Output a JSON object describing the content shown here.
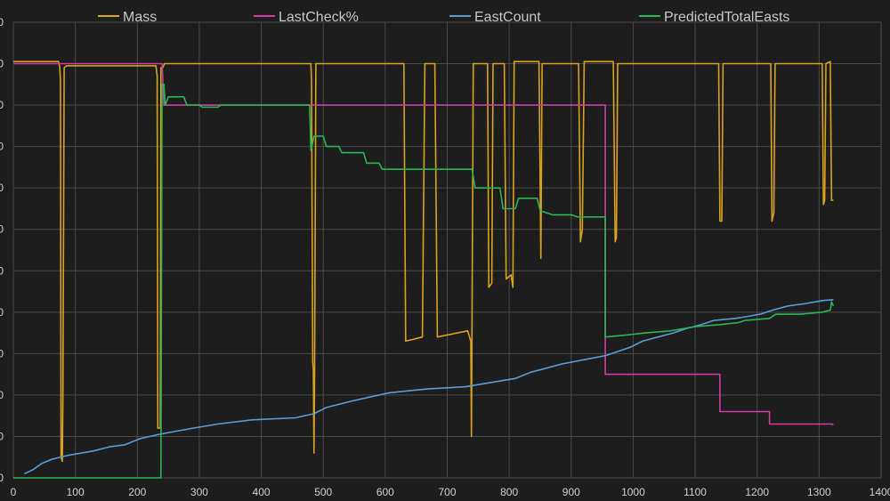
{
  "chart_data": {
    "type": "line",
    "title": "",
    "xlabel": "",
    "ylabel": "",
    "xlim": [
      0,
      1400
    ],
    "ylim": [
      0,
      11
    ],
    "x_ticks": [
      0,
      100,
      200,
      300,
      400,
      500,
      600,
      700,
      800,
      900,
      1000,
      1100,
      1200,
      1300,
      1400
    ],
    "y_tick_labels": [
      "0",
      "0",
      "0",
      "0",
      "0",
      "0",
      "0",
      "0",
      "0",
      "0",
      "0",
      "0"
    ],
    "grid": true,
    "legend_position": "top",
    "series": [
      {
        "name": "Mass",
        "color": "#d8a21e",
        "points": [
          [
            0,
            10.05
          ],
          [
            73,
            10.05
          ],
          [
            75,
            9.9
          ],
          [
            76,
            9.6
          ],
          [
            77,
            0.5
          ],
          [
            79,
            0.4
          ],
          [
            80,
            2.0
          ],
          [
            82,
            9.9
          ],
          [
            86,
            9.95
          ],
          [
            230,
            9.95
          ],
          [
            232,
            9.7
          ],
          [
            233,
            1.2
          ],
          [
            237,
            1.2
          ],
          [
            238,
            9.9
          ],
          [
            241,
            9.9
          ],
          [
            244,
            10.0
          ],
          [
            480,
            10.0
          ],
          [
            481,
            9.6
          ],
          [
            483,
            2.8
          ],
          [
            484,
            2.6
          ],
          [
            485,
            0.6
          ],
          [
            486,
            2.6
          ],
          [
            488,
            10.0
          ],
          [
            630,
            10.0
          ],
          [
            633,
            3.3
          ],
          [
            660,
            3.4
          ],
          [
            664,
            10.0
          ],
          [
            680,
            10.0
          ],
          [
            684,
            3.4
          ],
          [
            733,
            3.55
          ],
          [
            738,
            3.3
          ],
          [
            739,
            1.0
          ],
          [
            742,
            10.0
          ],
          [
            765,
            10.0
          ],
          [
            767,
            4.6
          ],
          [
            772,
            4.7
          ],
          [
            774,
            10.0
          ],
          [
            792,
            10.0
          ],
          [
            795,
            4.8
          ],
          [
            803,
            4.9
          ],
          [
            806,
            4.6
          ],
          [
            808,
            10.05
          ],
          [
            848,
            10.05
          ],
          [
            851,
            5.3
          ],
          [
            853,
            10.0
          ],
          [
            912,
            10.0
          ],
          [
            915,
            5.7
          ],
          [
            918,
            6.0
          ],
          [
            921,
            10.05
          ],
          [
            968,
            10.05
          ],
          [
            971,
            5.7
          ],
          [
            973,
            5.8
          ],
          [
            975,
            10.0
          ],
          [
            1138,
            10.0
          ],
          [
            1140,
            6.2
          ],
          [
            1143,
            6.2
          ],
          [
            1145,
            10.0
          ],
          [
            1222,
            10.0
          ],
          [
            1224,
            6.2
          ],
          [
            1227,
            6.4
          ],
          [
            1229,
            10.0
          ],
          [
            1305,
            10.0
          ],
          [
            1307,
            6.6
          ],
          [
            1309,
            6.7
          ],
          [
            1311,
            10.0
          ],
          [
            1318,
            10.05
          ],
          [
            1320,
            6.7
          ],
          [
            1323,
            6.7
          ]
        ]
      },
      {
        "name": "LastCheck%",
        "color": "#d23aa6",
        "points": [
          [
            0,
            10.0
          ],
          [
            240,
            10.0
          ],
          [
            243,
            9.0
          ],
          [
            955,
            9.0
          ],
          [
            955,
            2.5
          ],
          [
            1140,
            2.5
          ],
          [
            1140,
            1.6
          ],
          [
            1220,
            1.6
          ],
          [
            1220,
            1.3
          ],
          [
            1320,
            1.3
          ],
          [
            1323,
            1.28
          ]
        ]
      },
      {
        "name": "EastCount",
        "color": "#5b9bd5",
        "points": [
          [
            18,
            0.1
          ],
          [
            32,
            0.2
          ],
          [
            46,
            0.35
          ],
          [
            62,
            0.45
          ],
          [
            90,
            0.55
          ],
          [
            130,
            0.65
          ],
          [
            155,
            0.75
          ],
          [
            180,
            0.8
          ],
          [
            205,
            0.95
          ],
          [
            235,
            1.05
          ],
          [
            290,
            1.2
          ],
          [
            330,
            1.3
          ],
          [
            385,
            1.4
          ],
          [
            455,
            1.45
          ],
          [
            485,
            1.55
          ],
          [
            505,
            1.7
          ],
          [
            545,
            1.85
          ],
          [
            575,
            1.95
          ],
          [
            605,
            2.05
          ],
          [
            635,
            2.1
          ],
          [
            670,
            2.15
          ],
          [
            730,
            2.2
          ],
          [
            790,
            2.35
          ],
          [
            810,
            2.4
          ],
          [
            835,
            2.55
          ],
          [
            860,
            2.65
          ],
          [
            885,
            2.75
          ],
          [
            920,
            2.85
          ],
          [
            955,
            2.95
          ],
          [
            975,
            3.05
          ],
          [
            995,
            3.15
          ],
          [
            1015,
            3.3
          ],
          [
            1040,
            3.4
          ],
          [
            1065,
            3.5
          ],
          [
            1085,
            3.6
          ],
          [
            1110,
            3.7
          ],
          [
            1130,
            3.8
          ],
          [
            1165,
            3.85
          ],
          [
            1185,
            3.9
          ],
          [
            1205,
            3.95
          ],
          [
            1225,
            4.05
          ],
          [
            1250,
            4.15
          ],
          [
            1275,
            4.2
          ],
          [
            1305,
            4.28
          ],
          [
            1320,
            4.3
          ],
          [
            1323,
            4.3
          ]
        ]
      },
      {
        "name": "PredictedTotalEasts",
        "color": "#2ab554",
        "points": [
          [
            0,
            0.0
          ],
          [
            238,
            0.0
          ],
          [
            240,
            9.5
          ],
          [
            243,
            9.5
          ],
          [
            245,
            9.0
          ],
          [
            250,
            9.2
          ],
          [
            275,
            9.2
          ],
          [
            280,
            9.0
          ],
          [
            300,
            9.0
          ],
          [
            305,
            8.95
          ],
          [
            330,
            8.95
          ],
          [
            335,
            9.0
          ],
          [
            355,
            9.0
          ],
          [
            362,
            9.0
          ],
          [
            470,
            9.0
          ],
          [
            478,
            9.0
          ],
          [
            480,
            7.9
          ],
          [
            485,
            8.25
          ],
          [
            500,
            8.25
          ],
          [
            505,
            8.0
          ],
          [
            525,
            8.0
          ],
          [
            530,
            7.85
          ],
          [
            565,
            7.85
          ],
          [
            570,
            7.6
          ],
          [
            590,
            7.6
          ],
          [
            595,
            7.45
          ],
          [
            740,
            7.45
          ],
          [
            745,
            7.0
          ],
          [
            760,
            7.0
          ],
          [
            770,
            7.0
          ],
          [
            785,
            7.0
          ],
          [
            790,
            6.5
          ],
          [
            810,
            6.5
          ],
          [
            815,
            6.75
          ],
          [
            845,
            6.75
          ],
          [
            850,
            6.45
          ],
          [
            870,
            6.35
          ],
          [
            900,
            6.35
          ],
          [
            910,
            6.3
          ],
          [
            950,
            6.3
          ],
          [
            955,
            6.3
          ],
          [
            955,
            3.4
          ],
          [
            990,
            3.45
          ],
          [
            1020,
            3.5
          ],
          [
            1060,
            3.55
          ],
          [
            1100,
            3.65
          ],
          [
            1140,
            3.7
          ],
          [
            1170,
            3.75
          ],
          [
            1180,
            3.8
          ],
          [
            1220,
            3.85
          ],
          [
            1230,
            3.95
          ],
          [
            1270,
            3.95
          ],
          [
            1305,
            4.0
          ],
          [
            1318,
            4.05
          ],
          [
            1320,
            4.25
          ],
          [
            1323,
            4.15
          ]
        ]
      }
    ]
  }
}
